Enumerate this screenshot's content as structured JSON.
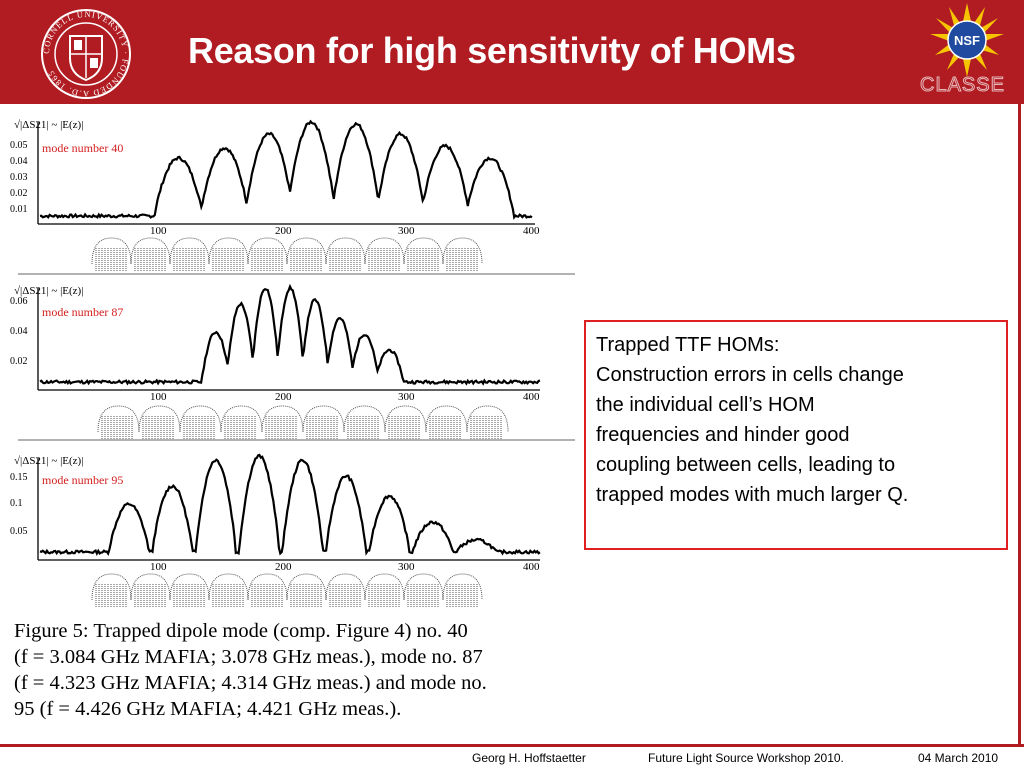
{
  "header": {
    "title": "Reason for high sensitivity of HOMs",
    "nsf_logo_text": "NSF",
    "classe_text": "CLASSE",
    "cornell_seal_text": "CORNELL UNIVERSITY · FOUNDED A.D. 1865"
  },
  "colors": {
    "header_red": "#b01c22",
    "box_red": "#e02020",
    "mode_label_red": "#d42020"
  },
  "figure": {
    "y_axis_label": "√|ΔS21| ~ |E(z)|",
    "x_ticks": [
      "100",
      "200",
      "300",
      "400"
    ],
    "panels": [
      {
        "mode_label": "mode number 40",
        "y_ticks": [
          "0.05",
          "0.04",
          "0.03",
          "0.02",
          "0.01"
        ]
      },
      {
        "mode_label": "mode number 87",
        "y_ticks": [
          "0.06",
          "0.04",
          "0.02"
        ]
      },
      {
        "mode_label": "mode number 95",
        "y_ticks": [
          "0.15",
          "0.1",
          "0.05"
        ]
      }
    ],
    "caption_lines": [
      "Figure 5: Trapped dipole mode (comp. Figure 4) no. 40",
      "(f = 3.084 GHz MAFIA; 3.078 GHz meas.),  mode  no. 87",
      "(f = 4.323 GHz MAFIA; 4.314 GHz meas.) and mode no.",
      "95 (f = 4.426 GHz MAFIA; 4.421 GHz meas.)."
    ]
  },
  "note": {
    "lines": [
      "Trapped TTF HOMs:",
      "Construction errors in cells change",
      "the individual cell’s HOM",
      "frequencies and hinder good",
      "coupling between cells, leading to",
      "trapped modes with much larger Q."
    ]
  },
  "footer": {
    "author": "Georg H. Hoffstaetter",
    "event": "Future Light Source Workshop 2010.",
    "date": "04 March 2010"
  }
}
